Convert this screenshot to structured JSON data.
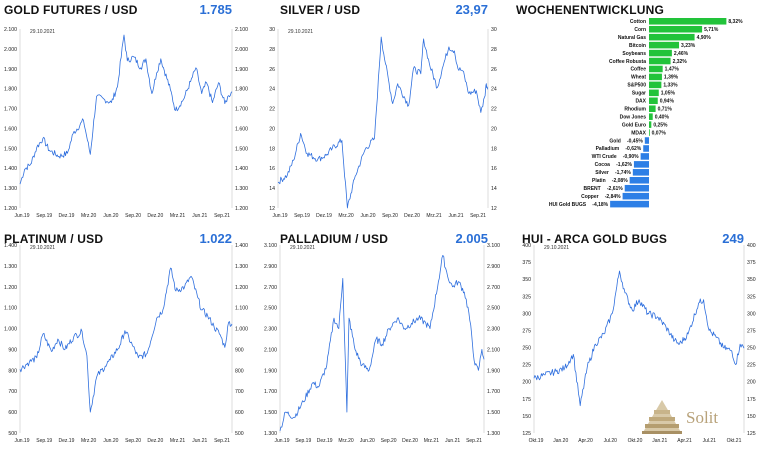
{
  "date_label": "29.10.2021",
  "colors": {
    "line": "#2f6fde",
    "positive": "#22c33a",
    "negative": "#2d7fe6",
    "value": "#2a6fd6"
  },
  "logo_text": "Solit",
  "chart_data": [
    {
      "id": "gold",
      "type": "line",
      "title": "GOLD FUTURES / USD",
      "value_label": "1.785",
      "date": "29.10.2021",
      "ylim": [
        1200,
        2100
      ],
      "yticks": [
        1200,
        1300,
        1400,
        1500,
        1600,
        1700,
        1800,
        1900,
        2000,
        2100
      ],
      "ytick_labels": [
        "1.200",
        "1.300",
        "1.400",
        "1.500",
        "1.600",
        "1.700",
        "1.800",
        "1.900",
        "2.000",
        "2.100"
      ],
      "xtick_labels": [
        "Jun.19",
        "Sep.19",
        "Dez.19",
        "Mrz.20",
        "Jun.20",
        "Sep.20",
        "Dez.20",
        "Mrz.21",
        "Jun.21",
        "Sep.21"
      ],
      "x_start": "2019-06-01",
      "x_end": "2021-10-29",
      "points": [
        [
          "2019-06-01",
          1320
        ],
        [
          "2019-06-20",
          1395
        ],
        [
          "2019-07-15",
          1420
        ],
        [
          "2019-08-10",
          1505
        ],
        [
          "2019-09-04",
          1550
        ],
        [
          "2019-10-01",
          1490
        ],
        [
          "2019-11-10",
          1460
        ],
        [
          "2019-12-15",
          1475
        ],
        [
          "2020-01-08",
          1575
        ],
        [
          "2020-02-20",
          1640
        ],
        [
          "2020-03-19",
          1470
        ],
        [
          "2020-04-14",
          1760
        ],
        [
          "2020-05-18",
          1745
        ],
        [
          "2020-06-15",
          1730
        ],
        [
          "2020-07-10",
          1810
        ],
        [
          "2020-08-06",
          2070
        ],
        [
          "2020-08-20",
          1940
        ],
        [
          "2020-09-15",
          1960
        ],
        [
          "2020-10-15",
          1905
        ],
        [
          "2020-11-05",
          1950
        ],
        [
          "2020-11-30",
          1775
        ],
        [
          "2020-12-20",
          1880
        ],
        [
          "2021-01-06",
          1950
        ],
        [
          "2021-02-15",
          1795
        ],
        [
          "2021-03-08",
          1690
        ],
        [
          "2021-04-10",
          1745
        ],
        [
          "2021-05-10",
          1835
        ],
        [
          "2021-06-01",
          1905
        ],
        [
          "2021-06-25",
          1775
        ],
        [
          "2021-07-15",
          1830
        ],
        [
          "2021-08-09",
          1730
        ],
        [
          "2021-09-03",
          1830
        ],
        [
          "2021-09-29",
          1725
        ],
        [
          "2021-10-15",
          1765
        ],
        [
          "2021-10-29",
          1785
        ]
      ]
    },
    {
      "id": "silver",
      "type": "line",
      "title": "SILVER / USD",
      "value_label": "23,97",
      "date": "29.10.2021",
      "ylim": [
        12,
        30
      ],
      "yticks": [
        12,
        14,
        16,
        18,
        20,
        22,
        24,
        26,
        28,
        30
      ],
      "ytick_labels": [
        "12",
        "14",
        "16",
        "18",
        "20",
        "22",
        "24",
        "26",
        "28",
        "30"
      ],
      "xtick_labels": [
        "Jun.19",
        "Sep.19",
        "Dez.19",
        "Mrz.20",
        "Jun.20",
        "Sep.20",
        "Dez.20",
        "Mrz.21",
        "Jun.21",
        "Sep.21"
      ],
      "x_start": "2019-06-01",
      "x_end": "2021-10-29",
      "points": [
        [
          "2019-06-01",
          14.6
        ],
        [
          "2019-07-10",
          15.3
        ],
        [
          "2019-08-05",
          16.8
        ],
        [
          "2019-09-04",
          19.5
        ],
        [
          "2019-10-01",
          17.5
        ],
        [
          "2019-11-15",
          16.9
        ],
        [
          "2019-12-20",
          17.3
        ],
        [
          "2020-01-15",
          18.0
        ],
        [
          "2020-02-24",
          18.8
        ],
        [
          "2020-03-18",
          12.0
        ],
        [
          "2020-04-20",
          15.2
        ],
        [
          "2020-06-01",
          17.9
        ],
        [
          "2020-07-10",
          19.0
        ],
        [
          "2020-08-07",
          29.2
        ],
        [
          "2020-08-25",
          26.5
        ],
        [
          "2020-09-24",
          22.5
        ],
        [
          "2020-10-15",
          24.5
        ],
        [
          "2020-11-30",
          22.3
        ],
        [
          "2020-12-20",
          26.0
        ],
        [
          "2021-01-20",
          25.5
        ],
        [
          "2021-02-01",
          29.0
        ],
        [
          "2021-02-25",
          26.5
        ],
        [
          "2021-03-30",
          24.1
        ],
        [
          "2021-04-20",
          26.0
        ],
        [
          "2021-05-18",
          28.2
        ],
        [
          "2021-06-10",
          27.8
        ],
        [
          "2021-06-25",
          26.0
        ],
        [
          "2021-07-15",
          25.8
        ],
        [
          "2021-08-10",
          23.5
        ],
        [
          "2021-09-10",
          23.8
        ],
        [
          "2021-09-29",
          21.6
        ],
        [
          "2021-10-15",
          23.2
        ],
        [
          "2021-10-22",
          24.5
        ],
        [
          "2021-10-29",
          23.97
        ]
      ]
    },
    {
      "id": "platinum",
      "type": "line",
      "title": "PLATINUM / USD",
      "value_label": "1.022",
      "date": "29.10.2021",
      "ylim": [
        500,
        1400
      ],
      "yticks": [
        500,
        600,
        700,
        800,
        900,
        1000,
        1100,
        1200,
        1300,
        1400
      ],
      "ytick_labels": [
        "500",
        "600",
        "700",
        "800",
        "900",
        "1.000",
        "1.100",
        "1.200",
        "1.300",
        "1.400"
      ],
      "xtick_labels": [
        "Jun.19",
        "Sep.19",
        "Dez.19",
        "Mrz.20",
        "Jun.20",
        "Sep.20",
        "Dez.20",
        "Mrz.21",
        "Jun.21",
        "Sep.21"
      ],
      "x_start": "2019-06-01",
      "x_end": "2021-10-29",
      "points": [
        [
          "2019-06-01",
          805
        ],
        [
          "2019-07-10",
          840
        ],
        [
          "2019-08-10",
          860
        ],
        [
          "2019-09-05",
          975
        ],
        [
          "2019-10-10",
          890
        ],
        [
          "2019-11-05",
          950
        ],
        [
          "2019-12-05",
          900
        ],
        [
          "2020-01-10",
          960
        ],
        [
          "2020-02-14",
          985
        ],
        [
          "2020-03-05",
          870
        ],
        [
          "2020-03-19",
          600
        ],
        [
          "2020-04-15",
          770
        ],
        [
          "2020-05-20",
          820
        ],
        [
          "2020-06-10",
          850
        ],
        [
          "2020-07-20",
          920
        ],
        [
          "2020-08-10",
          990
        ],
        [
          "2020-09-10",
          920
        ],
        [
          "2020-10-05",
          860
        ],
        [
          "2020-11-10",
          880
        ],
        [
          "2020-12-20",
          1050
        ],
        [
          "2021-01-15",
          1090
        ],
        [
          "2021-02-16",
          1290
        ],
        [
          "2021-03-10",
          1180
        ],
        [
          "2021-04-15",
          1200
        ],
        [
          "2021-05-12",
          1250
        ],
        [
          "2021-06-08",
          1150
        ],
        [
          "2021-06-25",
          1090
        ],
        [
          "2021-07-20",
          1060
        ],
        [
          "2021-08-15",
          1010
        ],
        [
          "2021-09-10",
          970
        ],
        [
          "2021-09-29",
          910
        ],
        [
          "2021-10-15",
          1030
        ],
        [
          "2021-10-29",
          1022
        ]
      ]
    },
    {
      "id": "palladium",
      "type": "line",
      "title": "PALLADIUM / USD",
      "value_label": "2.005",
      "date": "29.10.2021",
      "ylim": [
        1300,
        3100
      ],
      "yticks": [
        1300,
        1500,
        1700,
        1900,
        2100,
        2300,
        2500,
        2700,
        2900,
        3100
      ],
      "ytick_labels": [
        "1.300",
        "1.500",
        "1.700",
        "1.900",
        "2.100",
        "2.300",
        "2.500",
        "2.700",
        "2.900",
        "3.100"
      ],
      "xtick_labels": [
        "Jun.19",
        "Sep.19",
        "Dez.19",
        "Mrz.20",
        "Jun.20",
        "Sep.20",
        "Dez.20",
        "Mrz.21",
        "Jun.21",
        "Sep.21"
      ],
      "x_start": "2019-06-01",
      "x_end": "2021-10-29",
      "points": [
        [
          "2019-06-01",
          1320
        ],
        [
          "2019-06-25",
          1500
        ],
        [
          "2019-08-01",
          1450
        ],
        [
          "2019-09-10",
          1600
        ],
        [
          "2019-10-20",
          1780
        ],
        [
          "2019-11-15",
          1740
        ],
        [
          "2019-12-20",
          1950
        ],
        [
          "2020-01-20",
          2400
        ],
        [
          "2020-02-10",
          2300
        ],
        [
          "2020-02-27",
          2780
        ],
        [
          "2020-03-16",
          1500
        ],
        [
          "2020-03-25",
          2400
        ],
        [
          "2020-04-20",
          2100
        ],
        [
          "2020-05-20",
          1950
        ],
        [
          "2020-06-20",
          1900
        ],
        [
          "2020-07-20",
          2200
        ],
        [
          "2020-08-15",
          2150
        ],
        [
          "2020-09-15",
          2300
        ],
        [
          "2020-10-20",
          2400
        ],
        [
          "2020-11-20",
          2300
        ],
        [
          "2020-12-20",
          2350
        ],
        [
          "2021-01-20",
          2400
        ],
        [
          "2021-02-20",
          2350
        ],
        [
          "2021-03-10",
          2300
        ],
        [
          "2021-04-15",
          2750
        ],
        [
          "2021-05-04",
          3000
        ],
        [
          "2021-05-25",
          2800
        ],
        [
          "2021-06-15",
          2700
        ],
        [
          "2021-07-10",
          2750
        ],
        [
          "2021-08-05",
          2650
        ],
        [
          "2021-08-25",
          2450
        ],
        [
          "2021-09-20",
          1950
        ],
        [
          "2021-10-05",
          1900
        ],
        [
          "2021-10-20",
          2100
        ],
        [
          "2021-10-29",
          2005
        ]
      ]
    },
    {
      "id": "hui",
      "type": "line",
      "title": "HUI - ARCA GOLD BUGS",
      "value_label": "249",
      "date": "29.10.2021",
      "ylim": [
        125,
        400
      ],
      "yticks": [
        125,
        150,
        175,
        200,
        225,
        250,
        275,
        300,
        325,
        350,
        375,
        400
      ],
      "ytick_labels": [
        "125",
        "150",
        "175",
        "200",
        "225",
        "250",
        "275",
        "300",
        "325",
        "350",
        "375",
        "400"
      ],
      "xtick_labels": [
        "Okt.19",
        "Jan.20",
        "Apr.20",
        "Jul.20",
        "Okt.20",
        "Jan.21",
        "Apr.21",
        "Jul.21",
        "Okt.21"
      ],
      "x_start": "2019-10-01",
      "x_end": "2021-10-29",
      "points": [
        [
          "2019-10-01",
          205
        ],
        [
          "2019-11-10",
          210
        ],
        [
          "2019-12-20",
          215
        ],
        [
          "2020-01-20",
          220
        ],
        [
          "2020-02-20",
          240
        ],
        [
          "2020-03-16",
          165
        ],
        [
          "2020-04-10",
          220
        ],
        [
          "2020-05-10",
          255
        ],
        [
          "2020-06-10",
          270
        ],
        [
          "2020-07-10",
          300
        ],
        [
          "2020-08-05",
          362
        ],
        [
          "2020-08-25",
          330
        ],
        [
          "2020-09-20",
          305
        ],
        [
          "2020-10-15",
          320
        ],
        [
          "2020-11-15",
          300
        ],
        [
          "2020-12-20",
          295
        ],
        [
          "2021-01-20",
          280
        ],
        [
          "2021-02-20",
          260
        ],
        [
          "2021-03-10",
          255
        ],
        [
          "2021-04-10",
          270
        ],
        [
          "2021-05-18",
          315
        ],
        [
          "2021-06-05",
          320
        ],
        [
          "2021-06-25",
          275
        ],
        [
          "2021-07-20",
          265
        ],
        [
          "2021-08-15",
          250
        ],
        [
          "2021-09-15",
          245
        ],
        [
          "2021-09-29",
          225
        ],
        [
          "2021-10-15",
          255
        ],
        [
          "2021-10-29",
          249
        ]
      ]
    },
    {
      "id": "weekly",
      "type": "bar",
      "title": "WOCHENENTWICKLUNG",
      "orientation": "horizontal",
      "xlim": [
        -4.18,
        8.32
      ],
      "categories": [
        "Cotton",
        "Corn",
        "Natural Gas",
        "Bitcoin",
        "Soybeans",
        "Coffee Robusta",
        "Coffee",
        "Wheat",
        "S&P500",
        "Sugar",
        "DAX",
        "Rhodium",
        "Dow Jones",
        "Gold Euro",
        "MDAX",
        "Gold",
        "Palladium",
        "WTI Crude",
        "Cocoa",
        "Silver",
        "Platin",
        "BRENT",
        "Copper",
        "HUI Gold BUGS"
      ],
      "values": [
        8.32,
        5.71,
        4.9,
        3.23,
        2.46,
        2.32,
        1.47,
        1.39,
        1.33,
        1.05,
        0.94,
        0.71,
        0.4,
        0.25,
        0.07,
        -0.45,
        -0.62,
        -0.9,
        -1.62,
        -1.74,
        -2.08,
        -2.61,
        -2.84,
        -4.18
      ],
      "value_labels": [
        "8,32%",
        "5,71%",
        "4,90%",
        "3,23%",
        "2,46%",
        "2,32%",
        "1,47%",
        "1,39%",
        "1,33%",
        "1,05%",
        "0,94%",
        "0,71%",
        "0,40%",
        "0,25%",
        "0,07%",
        "-0,45%",
        "-0,62%",
        "-0,90%",
        "-1,62%",
        "-1,74%",
        "-2,08%",
        "-2,61%",
        "-2,84%",
        "-4,18%"
      ]
    }
  ]
}
